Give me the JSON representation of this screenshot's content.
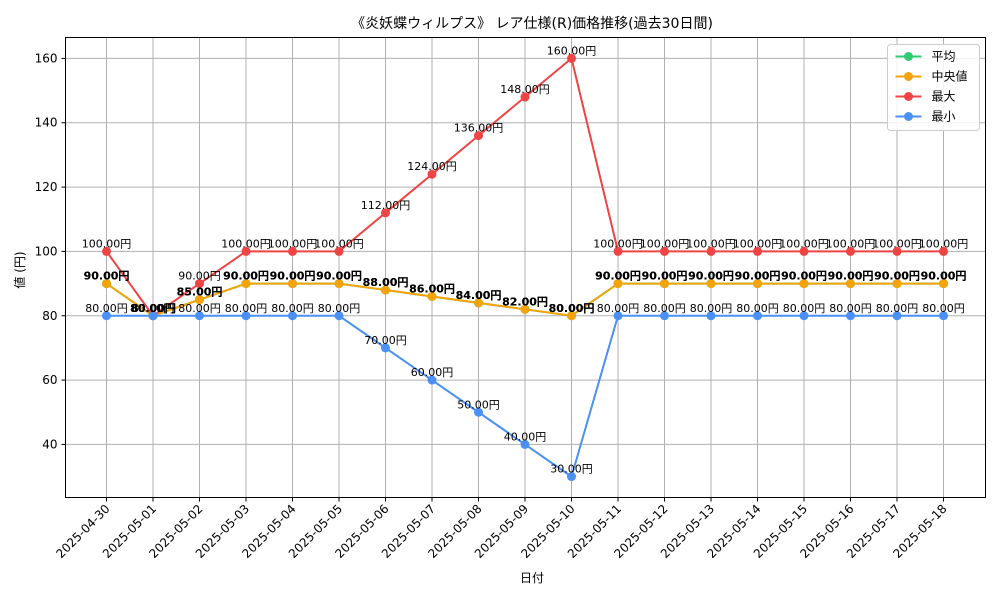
{
  "chart_data": {
    "type": "line",
    "title": "《炎妖蝶ウィルプス》 レア仕様(R)価格推移(過去30日間)",
    "xlabel": "日付",
    "ylabel": "値 (円)",
    "ylim": [
      23.5,
      166.5
    ],
    "yticks": [
      40,
      60,
      80,
      100,
      120,
      140,
      160
    ],
    "grid": true,
    "legend_position": "top-right",
    "value_suffix": "円",
    "categories": [
      "2025-04-30",
      "2025-05-01",
      "2025-05-02",
      "2025-05-03",
      "2025-05-04",
      "2025-05-05",
      "2025-05-06",
      "2025-05-07",
      "2025-05-08",
      "2025-05-09",
      "2025-05-10",
      "2025-05-11",
      "2025-05-12",
      "2025-05-13",
      "2025-05-14",
      "2025-05-15",
      "2025-05-16",
      "2025-05-17",
      "2025-05-18"
    ],
    "series": [
      {
        "name": "平均",
        "color": "#2ecc71",
        "values": [
          90,
          80,
          85,
          90,
          90,
          90,
          88,
          86,
          84,
          82,
          80,
          90,
          90,
          90,
          90,
          90,
          90,
          90,
          90
        ]
      },
      {
        "name": "中央値",
        "color": "#f5a30a",
        "values": [
          90,
          80,
          85,
          90,
          90,
          90,
          88,
          86,
          84,
          82,
          80,
          90,
          90,
          90,
          90,
          90,
          90,
          90,
          90
        ]
      },
      {
        "name": "最大",
        "color": "#ef4444",
        "values": [
          100,
          80,
          90,
          100,
          100,
          100,
          112,
          124,
          136,
          148,
          160,
          100,
          100,
          100,
          100,
          100,
          100,
          100,
          100
        ]
      },
      {
        "name": "最小",
        "color": "#4a90f5",
        "values": [
          80,
          80,
          80,
          80,
          80,
          80,
          70,
          60,
          50,
          40,
          30,
          80,
          80,
          80,
          80,
          80,
          80,
          80,
          80
        ]
      }
    ]
  }
}
